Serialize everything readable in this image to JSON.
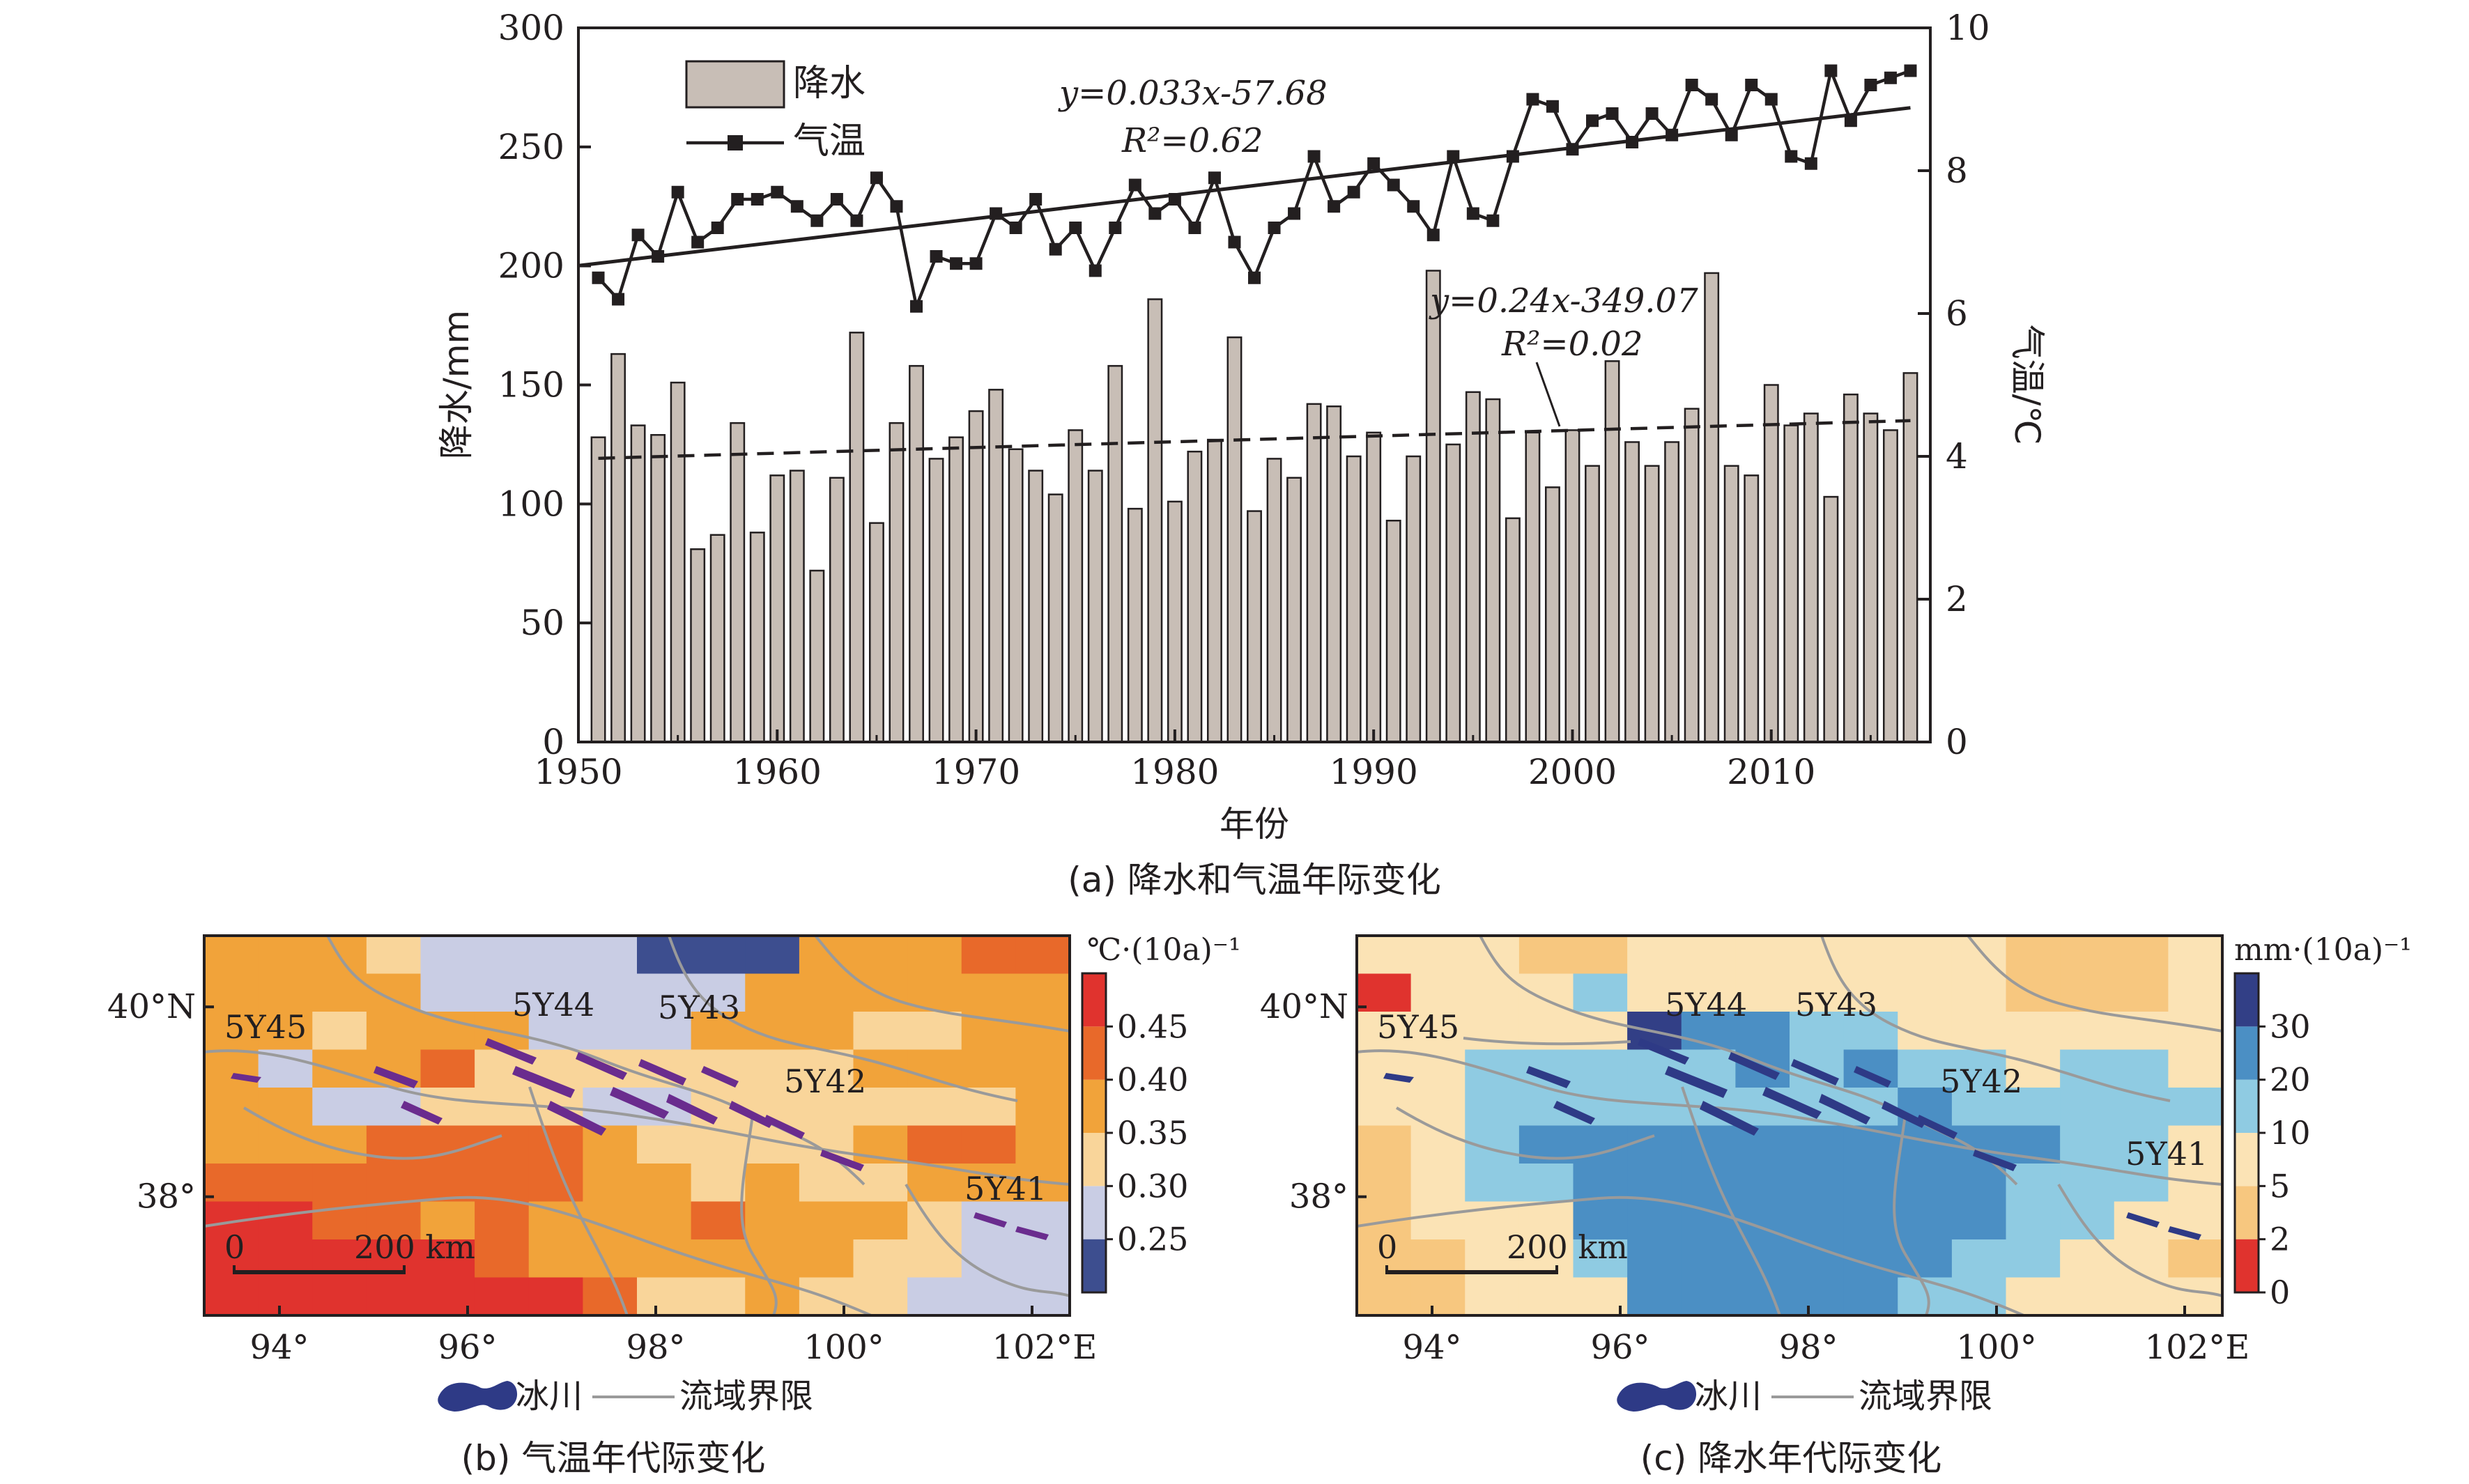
{
  "chart_data": [
    {
      "panel": "a",
      "type": "bar+line",
      "caption": "(a) 降水和气温年际变化",
      "xlabel": "年份",
      "ylabel_left": "降水/mm",
      "ylabel_right": "气温/℃",
      "xlim": [
        1950,
        2018
      ],
      "ylim_left": [
        0,
        300
      ],
      "ylim_right": [
        0,
        10
      ],
      "x_ticks": [
        "1950",
        "1960",
        "1970",
        "1980",
        "1990",
        "2000",
        "2010"
      ],
      "y_left_ticks": [
        "0",
        "50",
        "100",
        "150",
        "200",
        "250",
        "300"
      ],
      "y_right_ticks": [
        "0",
        "2",
        "4",
        "6",
        "8",
        "10"
      ],
      "legend": {
        "position": "top-left",
        "entries": [
          {
            "name": "降水",
            "kind": "bar"
          },
          {
            "name": "气温",
            "kind": "line-square"
          }
        ]
      },
      "years": [
        1951,
        1952,
        1953,
        1954,
        1955,
        1956,
        1957,
        1958,
        1959,
        1960,
        1961,
        1962,
        1963,
        1964,
        1965,
        1966,
        1967,
        1968,
        1969,
        1970,
        1971,
        1972,
        1973,
        1974,
        1975,
        1976,
        1977,
        1978,
        1979,
        1980,
        1981,
        1982,
        1983,
        1984,
        1985,
        1986,
        1987,
        1988,
        1989,
        1990,
        1991,
        1992,
        1993,
        1994,
        1995,
        1996,
        1997,
        1998,
        1999,
        2000,
        2001,
        2002,
        2003,
        2004,
        2005,
        2006,
        2007,
        2008,
        2009,
        2010,
        2011,
        2012,
        2013,
        2014,
        2015,
        2016,
        2017
      ],
      "series": [
        {
          "name": "降水",
          "axis": "left",
          "kind": "bar",
          "color": "#c8beb6",
          "values": [
            128,
            163,
            133,
            129,
            151,
            81,
            87,
            134,
            88,
            112,
            114,
            72,
            111,
            172,
            92,
            134,
            158,
            119,
            128,
            139,
            148,
            123,
            114,
            104,
            131,
            114,
            158,
            98,
            186,
            101,
            122,
            127,
            170,
            97,
            119,
            111,
            142,
            141,
            120,
            130,
            93,
            120,
            198,
            125,
            147,
            144,
            94,
            130,
            107,
            131,
            116,
            160,
            126,
            116,
            126,
            140,
            197,
            116,
            112,
            150,
            133,
            138,
            103,
            146,
            138,
            131,
            155
          ]
        },
        {
          "name": "气温",
          "axis": "right",
          "kind": "line",
          "color": "#231f20",
          "values": [
            6.5,
            6.2,
            7.1,
            6.8,
            7.7,
            7.0,
            7.2,
            7.6,
            7.6,
            7.7,
            7.5,
            7.3,
            7.6,
            7.3,
            7.9,
            7.5,
            6.1,
            6.8,
            6.7,
            6.7,
            7.4,
            7.2,
            7.6,
            6.9,
            7.2,
            6.6,
            7.2,
            7.8,
            7.4,
            7.6,
            7.2,
            7.9,
            7.0,
            6.5,
            7.2,
            7.4,
            8.2,
            7.5,
            7.7,
            8.1,
            7.8,
            7.5,
            7.1,
            8.2,
            7.4,
            7.3,
            8.2,
            9.0,
            8.9,
            8.3,
            8.7,
            8.8,
            8.4,
            8.8,
            8.5,
            9.2,
            9.0,
            8.5,
            9.2,
            9.0,
            8.2,
            8.1,
            9.4,
            8.7,
            9.2,
            9.3,
            9.4
          ]
        }
      ],
      "trend_lines": [
        {
          "series": "气温",
          "axis": "right",
          "style": "solid",
          "slope": 0.033,
          "intercept": -57.68,
          "equation": "y=0.033x-57.68",
          "r2": "R²=0.62"
        },
        {
          "series": "降水",
          "axis": "left",
          "style": "dashed",
          "slope": 0.24,
          "intercept": -349.07,
          "equation": "y=0.24x-349.07",
          "r2": "R²=0.02"
        }
      ]
    },
    {
      "panel": "b",
      "type": "heatmap",
      "caption": "(b) 气温年代际变化",
      "unit": "℃·(10a)⁻¹",
      "x_ticks": [
        "94°",
        "96°",
        "98°",
        "100°",
        "102°E"
      ],
      "y_ticks": [
        "40°N",
        "38°"
      ],
      "region_labels": [
        "5Y45",
        "5Y44",
        "5Y43",
        "5Y42",
        "5Y41"
      ],
      "scale_bar": {
        "start": "0",
        "end": "200 km"
      },
      "colorbar": {
        "ticks": [
          "0.25",
          "0.30",
          "0.35",
          "0.40",
          "0.45"
        ],
        "colors": [
          "#3d4e8f",
          "#c9cde4",
          "#f9d59a",
          "#f1a33a",
          "#e8692a",
          "#e0332e"
        ]
      },
      "class_grid": [
        "3332111100033344",
        "3333111111333333",
        "3323331113332233",
        "3133422222223333",
        "3311222112222223",
        "3334444322223443",
        "4444444332322333",
        "5544343334333211",
        "5555543333332211",
        "5555555422322111"
      ]
    },
    {
      "panel": "c",
      "type": "heatmap",
      "caption": "(c) 降水年代际变化",
      "unit": "mm·(10a)⁻¹",
      "x_ticks": [
        "94°",
        "96°",
        "98°",
        "100°",
        "102°E"
      ],
      "y_ticks": [
        "40°N",
        "38°"
      ],
      "region_labels": [
        "5Y45",
        "5Y44",
        "5Y43",
        "5Y42",
        "5Y41"
      ],
      "scale_bar": {
        "start": "0",
        "end": "200 km"
      },
      "colorbar": {
        "ticks": [
          "0",
          "2",
          "5",
          "10",
          "20",
          "30"
        ],
        "colors": [
          "#e0332e",
          "#f7c77f",
          "#fbe3b5",
          "#8fcbe2",
          "#4b8fc4",
          "#323f86"
        ]
      },
      "class_grid": [
        "2221122222221112",
        "0222322222221112",
        "2222254433222222",
        "2233333434332332",
        "2233333333433333",
        "1234444444444332",
        "1233444444443332",
        "1222444444443322",
        "1122344444433221",
        "1122244444332222"
      ]
    }
  ],
  "map_legend": {
    "glacier": "冰川",
    "boundary": "流域界限"
  }
}
